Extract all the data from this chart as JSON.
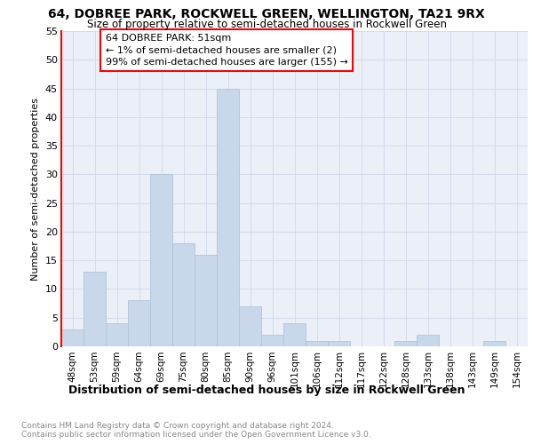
{
  "title": "64, DOBREE PARK, ROCKWELL GREEN, WELLINGTON, TA21 9RX",
  "subtitle": "Size of property relative to semi-detached houses in Rockwell Green",
  "xlabel": "Distribution of semi-detached houses by size in Rockwell Green",
  "ylabel": "Number of semi-detached properties",
  "footnote1": "Contains HM Land Registry data © Crown copyright and database right 2024.",
  "footnote2": "Contains public sector information licensed under the Open Government Licence v3.0.",
  "bar_labels": [
    "48sqm",
    "53sqm",
    "59sqm",
    "64sqm",
    "69sqm",
    "75sqm",
    "80sqm",
    "85sqm",
    "90sqm",
    "96sqm",
    "101sqm",
    "106sqm",
    "112sqm",
    "117sqm",
    "122sqm",
    "128sqm",
    "133sqm",
    "138sqm",
    "143sqm",
    "149sqm",
    "154sqm"
  ],
  "bar_values": [
    3,
    13,
    4,
    8,
    30,
    18,
    16,
    45,
    7,
    2,
    4,
    1,
    1,
    0,
    0,
    1,
    2,
    0,
    0,
    1,
    0
  ],
  "bar_color": "#c8d8ea",
  "bar_edge_color": "#b0c4d8",
  "annotation_line1": "64 DOBREE PARK: 51sqm",
  "annotation_line2": "← 1% of semi-detached houses are smaller (2)",
  "annotation_line3": "99% of semi-detached houses are larger (155) →",
  "annotation_box_color": "white",
  "annotation_box_edge": "red",
  "grid_color": "#d0d8e8",
  "bg_color": "#eaeff8",
  "ylim": [
    0,
    55
  ],
  "yticks": [
    0,
    5,
    10,
    15,
    20,
    25,
    30,
    35,
    40,
    45,
    50,
    55
  ]
}
